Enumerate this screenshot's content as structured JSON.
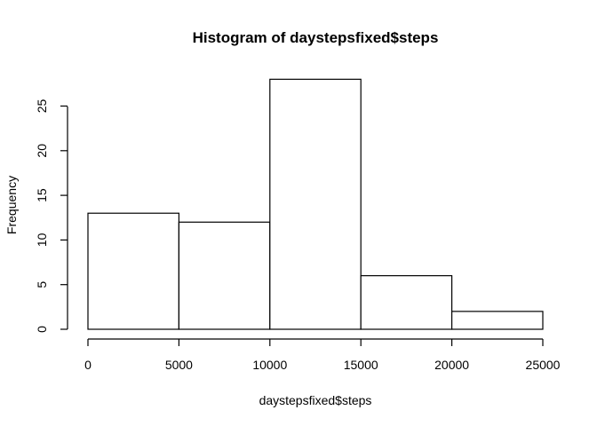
{
  "chart_data": {
    "type": "bar",
    "title": "Histogram of daystepsfixed$steps",
    "xlabel": "daystepsfixed$steps",
    "ylabel": "Frequency",
    "bins": [
      {
        "from": 0,
        "to": 5000,
        "count": 13
      },
      {
        "from": 5000,
        "to": 10000,
        "count": 12
      },
      {
        "from": 10000,
        "to": 15000,
        "count": 28
      },
      {
        "from": 15000,
        "to": 20000,
        "count": 6
      },
      {
        "from": 20000,
        "to": 25000,
        "count": 2
      }
    ],
    "xlim": [
      0,
      25000
    ],
    "ylim": [
      0,
      28
    ],
    "x_ticks": [
      "0",
      "5000",
      "10000",
      "15000",
      "20000",
      "25000"
    ],
    "y_ticks": [
      "0",
      "5",
      "10",
      "15",
      "20",
      "25"
    ],
    "grid": false,
    "legend": "none"
  }
}
